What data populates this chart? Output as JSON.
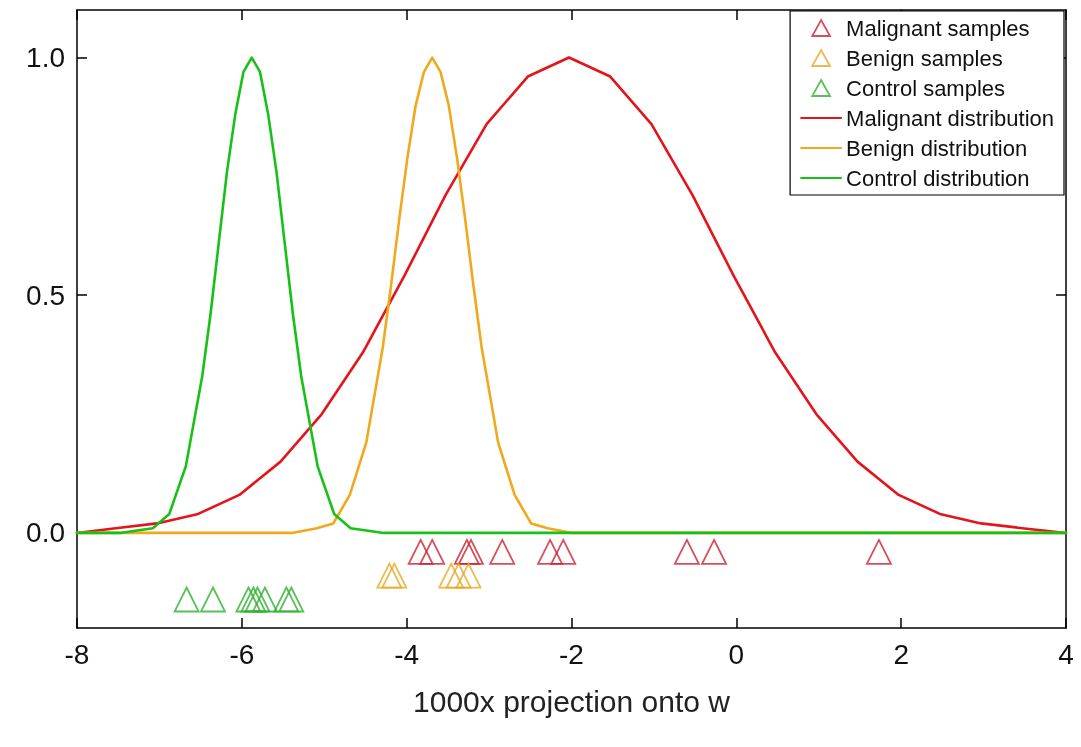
{
  "chart_data": {
    "type": "line",
    "xlabel": "1000x projection onto w",
    "xlim": [
      -8,
      4
    ],
    "xticks": [
      -8,
      -6,
      -4,
      -2,
      0,
      2,
      4
    ],
    "ylim": [
      -0.2,
      1.1
    ],
    "yticks": [
      {
        "value": 0,
        "label": "0.0"
      },
      {
        "value": 0.5,
        "label": "0.5"
      },
      {
        "value": 1,
        "label": "1.0"
      }
    ],
    "grid": false,
    "legend": "top right",
    "series": [
      {
        "name": "Malignant samples",
        "type": "scatter",
        "marker": "triangle",
        "color": "#cc2230",
        "x": [
          -3.83,
          -3.69,
          -3.27,
          -3.22,
          -2.84,
          -2.26,
          -2.1,
          -0.6,
          -0.27,
          1.73
        ],
        "values": [
          -0.04,
          -0.04,
          -0.04,
          -0.04,
          -0.04,
          -0.04,
          -0.04,
          -0.04,
          -0.04,
          -0.04
        ]
      },
      {
        "name": "Benign samples",
        "type": "scatter",
        "marker": "triangle",
        "color": "#e8a820",
        "x": [
          -4.21,
          -4.15,
          -3.46,
          -3.37,
          -3.25
        ],
        "values": [
          -0.09,
          -0.09,
          -0.09,
          -0.09,
          -0.09
        ]
      },
      {
        "name": "Control samples",
        "type": "scatter",
        "marker": "triangle",
        "color": "#30b030",
        "x": [
          -6.67,
          -6.35,
          -5.92,
          -5.86,
          -5.81,
          -5.72,
          -5.46,
          -5.4
        ],
        "values": [
          -0.14,
          -0.14,
          -0.14,
          -0.14,
          -0.14,
          -0.14,
          -0.14,
          -0.14
        ]
      },
      {
        "name": "Malignant distribution",
        "marker": "none",
        "color": "#e3141c",
        "x": [
          -8,
          -7.53,
          -7.03,
          -6.53,
          -6.03,
          -5.53,
          -5.03,
          -4.53,
          -4.03,
          -3.53,
          -3.03,
          -2.53,
          -2.03,
          -1.53,
          -1.03,
          -0.53,
          -0.03,
          0.47,
          0.97,
          1.47,
          1.97,
          2.47,
          2.97,
          3.47,
          4
        ],
        "values": [
          0,
          0.01,
          0.02,
          0.04,
          0.08,
          0.15,
          0.25,
          0.38,
          0.54,
          0.71,
          0.86,
          0.96,
          1,
          0.96,
          0.86,
          0.71,
          0.54,
          0.38,
          0.25,
          0.15,
          0.08,
          0.04,
          0.02,
          0.01,
          0
        ]
      },
      {
        "name": "Benign distribution",
        "marker": "none",
        "color": "#f0a81c",
        "x": [
          -8,
          -5.39,
          -5.09,
          -4.89,
          -4.69,
          -4.49,
          -4.29,
          -4.19,
          -4.09,
          -3.99,
          -3.89,
          -3.79,
          -3.69,
          -3.59,
          -3.49,
          -3.39,
          -3.29,
          -3.19,
          -3.09,
          -2.89,
          -2.69,
          -2.49,
          -2.29,
          -1.99,
          4
        ],
        "values": [
          0,
          0,
          0.01,
          0.02,
          0.08,
          0.19,
          0.39,
          0.52,
          0.66,
          0.79,
          0.9,
          0.97,
          1,
          0.97,
          0.9,
          0.79,
          0.66,
          0.52,
          0.39,
          0.19,
          0.08,
          0.02,
          0.01,
          0,
          0
        ]
      },
      {
        "name": "Control distribution",
        "marker": "none",
        "color": "#18c018",
        "x": [
          -8,
          -7.48,
          -7.08,
          -6.88,
          -6.68,
          -6.48,
          -6.38,
          -6.28,
          -6.18,
          -6.08,
          -5.98,
          -5.88,
          -5.78,
          -5.68,
          -5.58,
          -5.48,
          -5.38,
          -5.28,
          -5.08,
          -4.88,
          -4.68,
          -4.28,
          4
        ],
        "values": [
          0,
          0,
          0.01,
          0.04,
          0.14,
          0.33,
          0.46,
          0.61,
          0.76,
          0.88,
          0.97,
          1,
          0.97,
          0.88,
          0.76,
          0.61,
          0.46,
          0.33,
          0.14,
          0.04,
          0.01,
          0,
          0
        ]
      }
    ]
  }
}
